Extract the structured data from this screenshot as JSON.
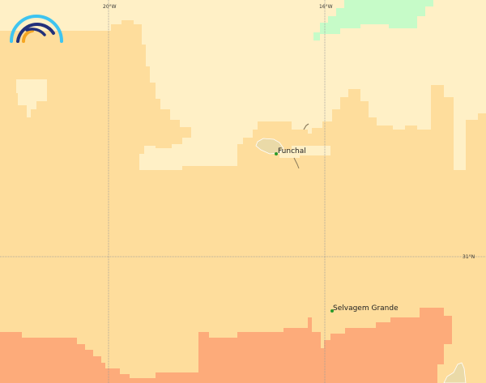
{
  "map": {
    "graticule": {
      "lon_labels": [
        "20°W",
        "16°W"
      ],
      "lat_labels": [
        "31°N"
      ]
    },
    "places": [
      {
        "name": "Funchal"
      },
      {
        "name": "Selvagem Grande"
      }
    ],
    "colors": {
      "pale_zone": "#fff0c6",
      "mid_zone": "#fedd9c",
      "warm_zone": "#fdab7a",
      "cool_zone": "#c6fbc8",
      "land": "#eadaa8",
      "gridline": "#999999",
      "place_marker": "#2a9a2a"
    },
    "logo": "rainbow-arc-logo"
  }
}
